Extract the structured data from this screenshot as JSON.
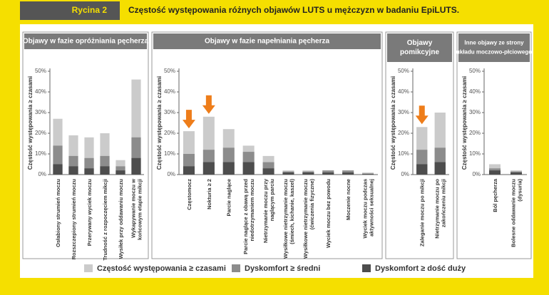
{
  "header": {
    "label": "Rycina 2",
    "title": "Częstość występowania różnych objawów LUTS u mężczyzn w badaniu EpiLUTS."
  },
  "chart_data": [
    {
      "type": "bar",
      "title": [
        "Objawy w fazie opróżniania pęcherza"
      ],
      "y_label": "Częstość występowania ≥ czasami",
      "ylim": [
        0,
        50
      ],
      "yticks": [
        {
          "value": 0,
          "label": "0%"
        },
        {
          "value": 10,
          "label": "10%"
        },
        {
          "value": 20,
          "label": "20%"
        },
        {
          "value": 30,
          "label": "30%"
        },
        {
          "value": 40,
          "label": "40%"
        },
        {
          "value": 50,
          "label": "50%"
        }
      ],
      "categories": [
        [
          "Osłabiony strumień moczu"
        ],
        [
          "Rozszczepiony strumień moczu"
        ],
        [
          "Przerywany wyciek moczu"
        ],
        [
          "Trudność z rozpoczęciem mikcji"
        ],
        [
          "Wysiłek przy oddawaniu moczu"
        ],
        [
          "Wykapywanie moczu w",
          "końcowym etapie mikcji"
        ]
      ],
      "series": [
        {
          "name": "Częstość występowania ≥ czasami",
          "color": "#cbcbcb",
          "values": [
            27,
            19,
            18,
            20,
            7,
            46
          ]
        },
        {
          "name": "Dyskomfort ≥ średni",
          "color": "#8c8c8c",
          "values": [
            14,
            9,
            8,
            9,
            4,
            18
          ]
        },
        {
          "name": "Dyskomfort ≥ dość duży",
          "color": "#4d4d4d",
          "values": [
            5,
            4,
            3,
            4,
            2,
            8
          ]
        }
      ]
    },
    {
      "type": "bar",
      "title": [
        "Objawy w fazie napełniania pęcherza"
      ],
      "y_label": "Częstość występowania ≥ czasami",
      "ylim": [
        0,
        50
      ],
      "yticks": [
        {
          "value": 0,
          "label": "0%"
        },
        {
          "value": 10,
          "label": "10%"
        },
        {
          "value": 20,
          "label": "20%"
        },
        {
          "value": 30,
          "label": "30%"
        },
        {
          "value": 40,
          "label": "40%"
        },
        {
          "value": 50,
          "label": "50%"
        }
      ],
      "categories": [
        [
          "Częstomocz"
        ],
        [
          "Nokturia ≥ 2"
        ],
        [
          "Parcie naglące"
        ],
        [
          "Parcie naglące z obawą przed",
          "niedotrzymaniem moczu"
        ],
        [
          "Nietrzymanie moczu przy",
          "naglącym parciu"
        ],
        [
          "Wysiłkowe nietrzymanie moczu",
          "(śmiech, kichanie, kaszel)"
        ],
        [
          "Wysiłkowe nietrzymanie moczu",
          "(ćwiczenia fizyczne)"
        ],
        [
          "Wyciek moczu bez powodu"
        ],
        [
          "Moczenie nocne"
        ],
        [
          "Wyciek moczu podczas",
          "aktywności seksualnej"
        ]
      ],
      "arrows": [
        0,
        1
      ],
      "series": [
        {
          "color": "#cbcbcb",
          "values": [
            21,
            28,
            22,
            14,
            9,
            2,
            2,
            2,
            2,
            1
          ]
        },
        {
          "color": "#8c8c8c",
          "values": [
            10,
            12,
            13,
            11,
            6,
            1.5,
            1.5,
            2,
            2,
            0.5
          ]
        },
        {
          "color": "#4d4d4d",
          "values": [
            4,
            6,
            6,
            6,
            3,
            1,
            1,
            1,
            1,
            0.3
          ]
        }
      ]
    },
    {
      "type": "bar",
      "title": [
        "Objawy",
        "pomikcyjne"
      ],
      "y_label": "Częstość występowania ≥ czasami",
      "ylim": [
        0,
        50
      ],
      "yticks": [
        {
          "value": 0,
          "label": "0%"
        },
        {
          "value": 10,
          "label": "10%"
        },
        {
          "value": 20,
          "label": "20%"
        },
        {
          "value": 30,
          "label": "30%"
        },
        {
          "value": 40,
          "label": "40%"
        },
        {
          "value": 50,
          "label": "50%"
        }
      ],
      "categories": [
        [
          "Zaleganie moczu po mikcji"
        ],
        [
          "Nietrzymanie moczu po",
          "zakończeniu mikcji"
        ]
      ],
      "arrows": [
        0
      ],
      "series": [
        {
          "color": "#cbcbcb",
          "values": [
            23,
            30
          ]
        },
        {
          "color": "#8c8c8c",
          "values": [
            12,
            13
          ]
        },
        {
          "color": "#4d4d4d",
          "values": [
            5,
            6
          ]
        }
      ]
    },
    {
      "type": "bar",
      "title": [
        "Inne objawy ze strony",
        "układu moczowo-płciowego"
      ],
      "y_label": "Częstość występowania ≥ czasami",
      "ylim": [
        0,
        50
      ],
      "yticks": [
        {
          "value": 0,
          "label": "0%"
        },
        {
          "value": 10,
          "label": "10%"
        },
        {
          "value": 20,
          "label": "20%"
        },
        {
          "value": 30,
          "label": "30%"
        },
        {
          "value": 40,
          "label": "40%"
        },
        {
          "value": 50,
          "label": "50%"
        }
      ],
      "categories": [
        [
          "Ból pęcherza"
        ],
        [
          "Bolesne oddawanie moczu",
          "(dysuria)"
        ]
      ],
      "series": [
        {
          "color": "#cbcbcb",
          "values": [
            5,
            2
          ]
        },
        {
          "color": "#8c8c8c",
          "values": [
            3,
            1.5
          ]
        },
        {
          "color": "#4d4d4d",
          "values": [
            2,
            1
          ]
        }
      ]
    }
  ]
}
